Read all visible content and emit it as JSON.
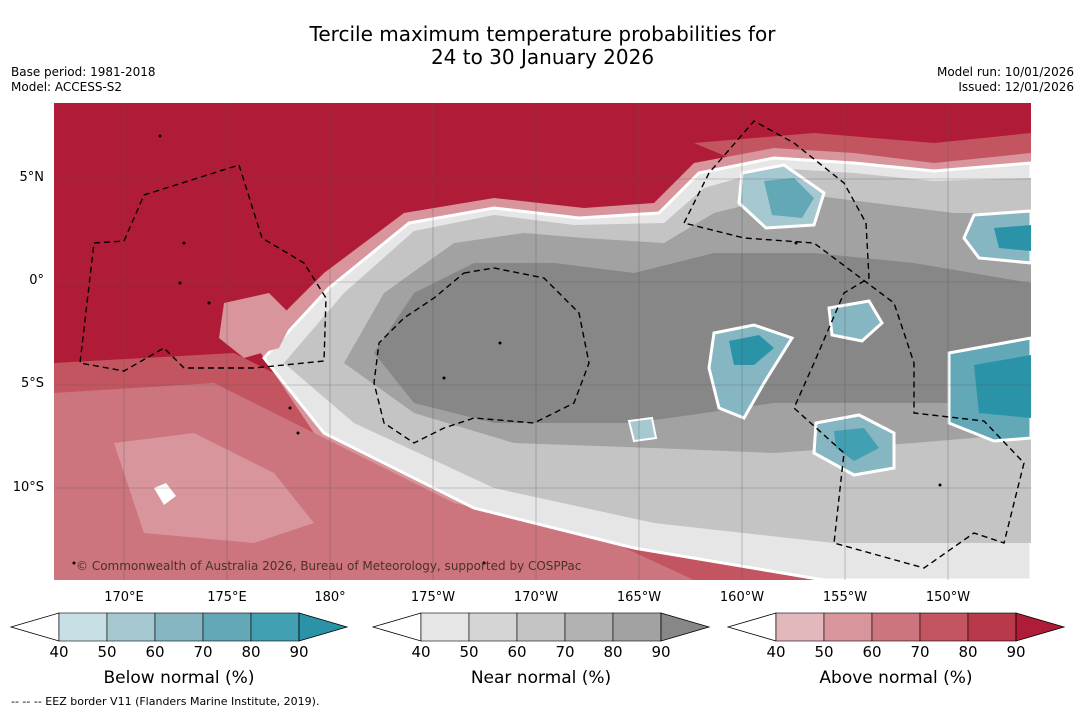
{
  "title": {
    "line1": "Tercile maximum temperature probabilities for",
    "line2": "24 to 30 January 2026"
  },
  "meta": {
    "base_period": "Base period: 1981-2018",
    "model": "Model: ACCESS-S2",
    "model_run": "Model run: 10/01/2026",
    "issued": "Issued: 12/01/2026"
  },
  "map": {
    "lat_labels": [
      "5°N",
      "0°",
      "5°S",
      "10°S"
    ],
    "lon_labels": [
      "170°E",
      "175°E",
      "180°",
      "175°W",
      "170°W",
      "165°W",
      "160°W",
      "155°W",
      "150°W"
    ],
    "copyright": "© Commonwealth of Australia 2026, Bureau of Meteorology, supported by COSPPac"
  },
  "colorbars": [
    {
      "title": "Below normal (%)",
      "ticks": [
        "40",
        "50",
        "60",
        "70",
        "80",
        "90"
      ],
      "colors": [
        "#ffffff",
        "#c6e0e6",
        "#a6c8d0",
        "#86b6c2",
        "#62a8b6",
        "#41a0b2",
        "#2a93a8"
      ]
    },
    {
      "title": "Near normal (%)",
      "ticks": [
        "40",
        "50",
        "60",
        "70",
        "80",
        "90"
      ],
      "colors": [
        "#ffffff",
        "#e6e6e6",
        "#d5d5d5",
        "#c4c4c4",
        "#b2b2b2",
        "#a2a2a2",
        "#878787"
      ]
    },
    {
      "title": "Above normal (%)",
      "ticks": [
        "40",
        "50",
        "60",
        "70",
        "80",
        "90"
      ],
      "colors": [
        "#ffffff",
        "#e2b8bc",
        "#d8959c",
        "#cc757f",
        "#c35561",
        "#b8394a",
        "#b01c38"
      ]
    }
  ],
  "footnote": "--  --  -- EEZ border V11 (Flanders Marine Institute, 2019)."
}
